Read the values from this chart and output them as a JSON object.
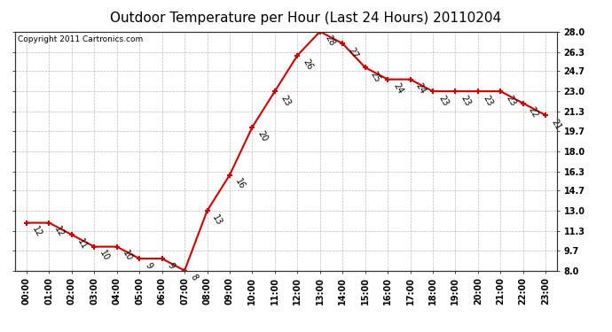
{
  "title": "Outdoor Temperature per Hour (Last 24 Hours) 20110204",
  "copyright": "Copyright 2011 Cartronics.com",
  "hours": [
    "00:00",
    "01:00",
    "02:00",
    "03:00",
    "04:00",
    "05:00",
    "06:00",
    "07:00",
    "08:00",
    "09:00",
    "10:00",
    "11:00",
    "12:00",
    "13:00",
    "14:00",
    "15:00",
    "16:00",
    "17:00",
    "18:00",
    "19:00",
    "20:00",
    "21:00",
    "22:00",
    "23:00"
  ],
  "temps": [
    12,
    12,
    11,
    10,
    10,
    9,
    9,
    8,
    13,
    16,
    20,
    23,
    26,
    28,
    27,
    25,
    24,
    24,
    23,
    23,
    23,
    23,
    22,
    21
  ],
  "line_color": "#cc0000",
  "marker_color": "#cc0000",
  "bg_color": "#ffffff",
  "grid_color": "#aaaaaa",
  "ylim_min": 8.0,
  "ylim_max": 28.0,
  "yticks": [
    8.0,
    9.7,
    11.3,
    13.0,
    14.7,
    16.3,
    18.0,
    19.7,
    21.3,
    23.0,
    24.7,
    26.3,
    28.0
  ],
  "title_fontsize": 11,
  "label_fontsize": 7,
  "copyright_fontsize": 6.5,
  "annot_fontsize": 7,
  "annot_rotation": -60
}
